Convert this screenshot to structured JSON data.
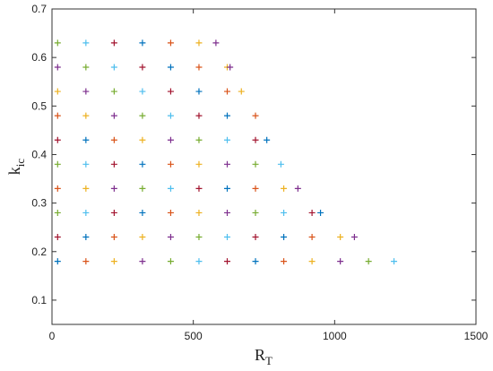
{
  "chart_data": {
    "type": "scatter",
    "xlabel": "R",
    "xlabel_sub": "T",
    "ylabel": "k",
    "ylabel_sub": "ic",
    "xlim": [
      0,
      1500
    ],
    "ylim": [
      0.05,
      0.7
    ],
    "xticks": [
      0,
      500,
      1000,
      1500
    ],
    "yticks": [
      0.1,
      0.2,
      0.3,
      0.4,
      0.5,
      0.6,
      0.7
    ],
    "marker": "+",
    "colors": [
      "#0072bd",
      "#d95319",
      "#edb120",
      "#7e2f8e",
      "#77ac30",
      "#4dbeee",
      "#a2142f"
    ],
    "x": [
      20,
      120,
      220,
      320,
      420,
      520,
      620,
      720,
      820,
      920,
      1020,
      1120,
      1210,
      20,
      120,
      220,
      320,
      420,
      520,
      620,
      720,
      820,
      920,
      1020,
      1070,
      20,
      120,
      220,
      320,
      420,
      520,
      620,
      720,
      820,
      920,
      950,
      20,
      120,
      220,
      320,
      420,
      520,
      620,
      720,
      820,
      870,
      20,
      120,
      220,
      320,
      420,
      520,
      620,
      720,
      810,
      20,
      120,
      220,
      320,
      420,
      520,
      620,
      720,
      760,
      20,
      120,
      220,
      320,
      420,
      520,
      620,
      720,
      20,
      120,
      220,
      320,
      420,
      520,
      620,
      670,
      20,
      120,
      220,
      320,
      420,
      520,
      620,
      630,
      20,
      120,
      220,
      320,
      420,
      520,
      580
    ],
    "y": [
      0.18,
      0.18,
      0.18,
      0.18,
      0.18,
      0.18,
      0.18,
      0.18,
      0.18,
      0.18,
      0.18,
      0.18,
      0.18,
      0.23,
      0.23,
      0.23,
      0.23,
      0.23,
      0.23,
      0.23,
      0.23,
      0.23,
      0.23,
      0.23,
      0.23,
      0.28,
      0.28,
      0.28,
      0.28,
      0.28,
      0.28,
      0.28,
      0.28,
      0.28,
      0.28,
      0.28,
      0.33,
      0.33,
      0.33,
      0.33,
      0.33,
      0.33,
      0.33,
      0.33,
      0.33,
      0.33,
      0.38,
      0.38,
      0.38,
      0.38,
      0.38,
      0.38,
      0.38,
      0.38,
      0.38,
      0.43,
      0.43,
      0.43,
      0.43,
      0.43,
      0.43,
      0.43,
      0.43,
      0.43,
      0.48,
      0.48,
      0.48,
      0.48,
      0.48,
      0.48,
      0.48,
      0.48,
      0.53,
      0.53,
      0.53,
      0.53,
      0.53,
      0.53,
      0.53,
      0.53,
      0.58,
      0.58,
      0.58,
      0.58,
      0.58,
      0.58,
      0.58,
      0.58,
      0.63,
      0.63,
      0.63,
      0.63,
      0.63,
      0.63,
      0.63
    ]
  }
}
